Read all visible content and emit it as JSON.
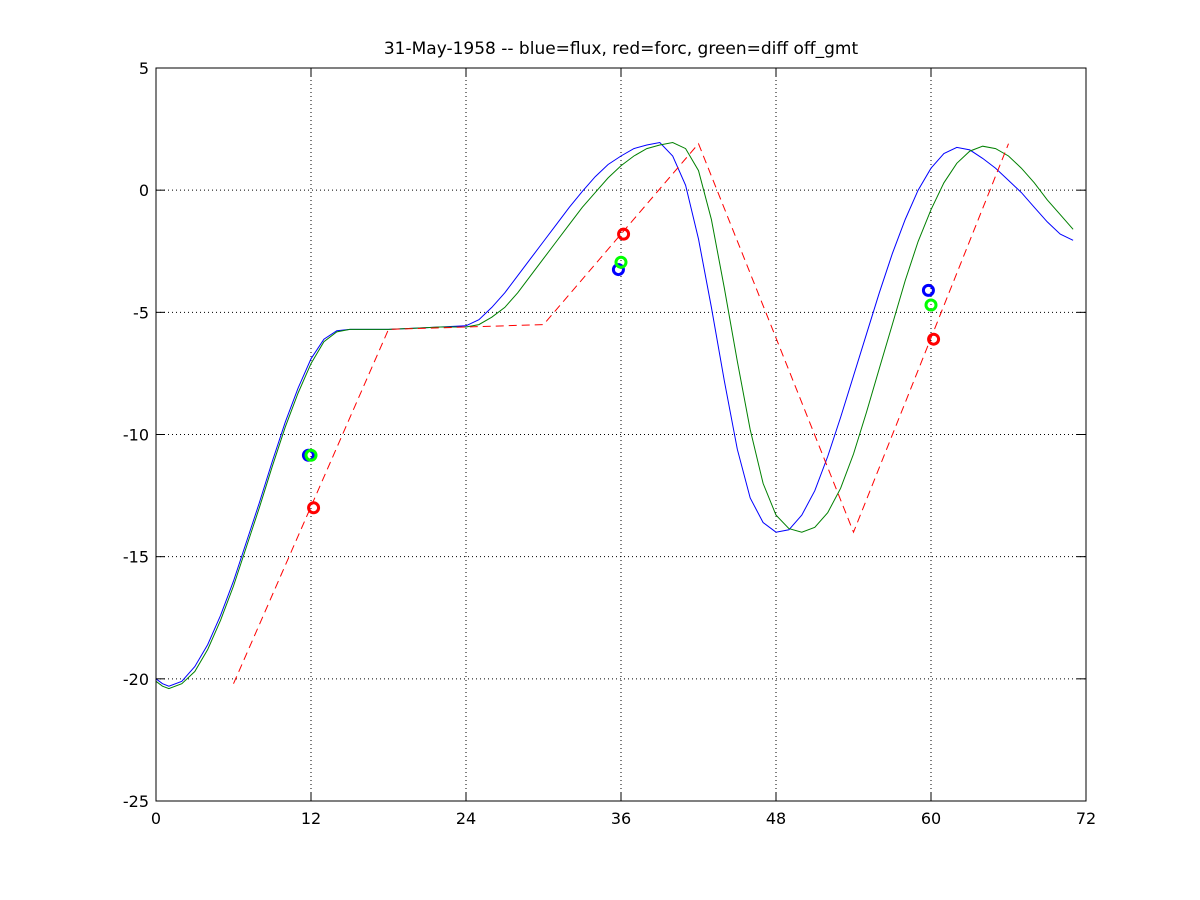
{
  "chart_data": {
    "type": "line",
    "title": "31-May-1958 -- blue=flux, red=forc, green=diff off_gmt",
    "xlabel": "",
    "ylabel": "",
    "xlim": [
      0,
      72
    ],
    "ylim": [
      -25,
      5
    ],
    "xticks": [
      0,
      12,
      24,
      36,
      48,
      60,
      72
    ],
    "yticks": [
      5,
      0,
      -5,
      -10,
      -15,
      -20,
      -25
    ],
    "xtick_labels": [
      "0",
      "12",
      "24",
      "36",
      "48",
      "60",
      "72"
    ],
    "ytick_labels": [
      "5",
      "0",
      "-5",
      "-10",
      "-15",
      "-20",
      "-25"
    ],
    "grid": true,
    "series": [
      {
        "color": "#0000ff",
        "style": "solid",
        "x": [
          0,
          0.5,
          1,
          2,
          3,
          4,
          5,
          6,
          7,
          8,
          9,
          10,
          11,
          12,
          13,
          14,
          15,
          16,
          18,
          20,
          22,
          24,
          25,
          26,
          27,
          28,
          29,
          30,
          31,
          32,
          33,
          34,
          35,
          36,
          37,
          38,
          39,
          40,
          41,
          42,
          43,
          44,
          45,
          46,
          47,
          48,
          49,
          50,
          51,
          52,
          53,
          54,
          55,
          56,
          57,
          58,
          59,
          60,
          61,
          62,
          63,
          64,
          65,
          66,
          67,
          68,
          69,
          70,
          71
        ],
        "y": [
          -20.0,
          -20.2,
          -20.3,
          -20.1,
          -19.5,
          -18.6,
          -17.4,
          -16.0,
          -14.4,
          -12.8,
          -11.1,
          -9.5,
          -8.1,
          -6.9,
          -6.1,
          -5.75,
          -5.7,
          -5.7,
          -5.7,
          -5.65,
          -5.6,
          -5.55,
          -5.3,
          -4.8,
          -4.2,
          -3.5,
          -2.8,
          -2.1,
          -1.4,
          -0.7,
          -0.05,
          0.55,
          1.05,
          1.4,
          1.7,
          1.85,
          1.95,
          1.4,
          0.2,
          -2.0,
          -4.8,
          -7.8,
          -10.6,
          -12.6,
          -13.6,
          -14.0,
          -13.9,
          -13.3,
          -12.3,
          -10.9,
          -9.3,
          -7.6,
          -5.9,
          -4.2,
          -2.6,
          -1.2,
          0.0,
          0.9,
          1.5,
          1.75,
          1.65,
          1.3,
          0.9,
          0.4,
          -0.1,
          -0.7,
          -1.3,
          -1.8,
          -2.05
        ]
      },
      {
        "color": "#008000",
        "style": "solid",
        "x": [
          0,
          0.5,
          1,
          2,
          3,
          4,
          5,
          6,
          7,
          8,
          9,
          10,
          11,
          12,
          13,
          14,
          15,
          16,
          18,
          20,
          22,
          24,
          25,
          26,
          27,
          28,
          29,
          30,
          31,
          32,
          33,
          34,
          35,
          36,
          37,
          38,
          39,
          40,
          41,
          42,
          43,
          44,
          45,
          46,
          47,
          48,
          49,
          50,
          51,
          52,
          53,
          54,
          55,
          56,
          57,
          58,
          59,
          60,
          61,
          62,
          63,
          64,
          65,
          66,
          67,
          68,
          69,
          70,
          71
        ],
        "y": [
          -20.1,
          -20.3,
          -20.4,
          -20.2,
          -19.7,
          -18.8,
          -17.6,
          -16.2,
          -14.6,
          -13.0,
          -11.3,
          -9.7,
          -8.3,
          -7.1,
          -6.2,
          -5.8,
          -5.7,
          -5.7,
          -5.7,
          -5.65,
          -5.6,
          -5.6,
          -5.5,
          -5.2,
          -4.8,
          -4.2,
          -3.5,
          -2.8,
          -2.1,
          -1.4,
          -0.7,
          -0.1,
          0.5,
          1.0,
          1.4,
          1.7,
          1.85,
          1.95,
          1.7,
          0.8,
          -1.2,
          -4.0,
          -7.0,
          -9.8,
          -12.0,
          -13.3,
          -13.85,
          -14.0,
          -13.8,
          -13.2,
          -12.2,
          -10.8,
          -9.1,
          -7.3,
          -5.5,
          -3.7,
          -2.1,
          -0.8,
          0.3,
          1.1,
          1.6,
          1.8,
          1.7,
          1.4,
          0.9,
          0.3,
          -0.4,
          -1.0,
          -1.6
        ]
      },
      {
        "color": "#ff0000",
        "style": "dashed",
        "x": [
          6,
          18,
          30,
          42,
          54,
          66
        ],
        "y": [
          -20.2,
          -5.7,
          -5.5,
          1.9,
          -14.0,
          1.9
        ]
      }
    ],
    "markers": [
      {
        "color": "#0000ff",
        "x": [
          11.8,
          35.8,
          59.8
        ],
        "y": [
          -10.85,
          -3.25,
          -4.1
        ]
      },
      {
        "color": "#00ff00",
        "x": [
          12.0,
          36.0,
          60.0
        ],
        "y": [
          -10.85,
          -2.95,
          -4.7
        ]
      },
      {
        "color": "#ff0000",
        "x": [
          12.2,
          36.2,
          60.2
        ],
        "y": [
          -13.0,
          -1.8,
          -6.1
        ]
      }
    ]
  }
}
